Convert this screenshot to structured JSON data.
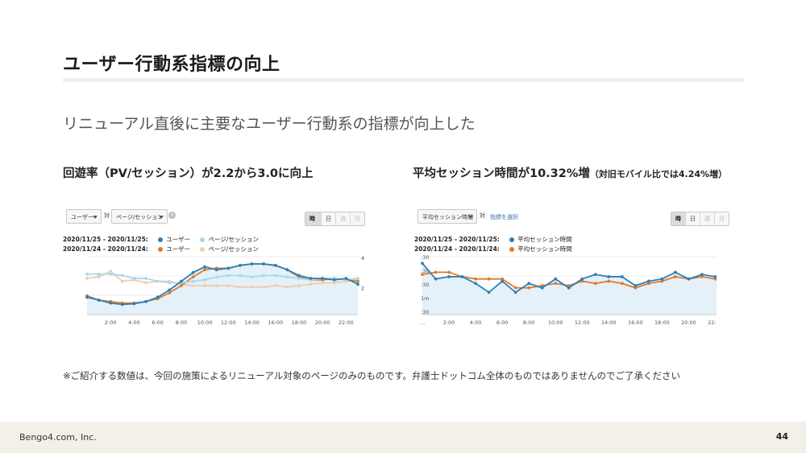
{
  "slide": {
    "title": "ユーザー行動系指標の向上",
    "subtitle": "リニューアル直後に主要なユーザー行動系の指標が向上した",
    "left_heading": "回遊率（PV/セッション）が2.2から3.0に向上",
    "right_heading_main": "平均セッション時間が10.32%増",
    "right_heading_note": "（対旧モバイル比では4.24%増）",
    "note": "※ご紹介する数値は、今回の施策によるリニューアル対象のページのみのものです。弁護士ドットコム全体のものではありませんのでご了承ください",
    "footer_company": "Bengo4.com, Inc.",
    "page_number": "44"
  },
  "colors": {
    "current_dark": "#2e7fb6",
    "current_light": "#a8d8ee",
    "previous_dark": "#e07b2a",
    "previous_light": "#f6cba8",
    "area_fill": "#e4f1f9"
  },
  "left_panel": {
    "dropdown1": "ユーザー",
    "vs": "対",
    "dropdown2": "ページ/セッション",
    "clear_icon": "close-icon",
    "seg_hourly": "時間別",
    "seg_day": "日",
    "seg_week": "週",
    "seg_month": "月",
    "range_current": "2020/11/25 - 2020/11/25:",
    "range_previous": "2020/11/24 - 2020/11/24:",
    "legend_user": "ユーザー",
    "legend_pps": "ページ/セッション"
  },
  "right_panel": {
    "dropdown1": "平均セッション時間",
    "vs": "対",
    "select_metric": "指標を選択",
    "seg_hourly": "時間別",
    "seg_day": "日",
    "seg_week": "週",
    "seg_month": "月",
    "range_current": "2020/11/25 - 2020/11/25:",
    "range_previous": "2020/11/24 - 2020/11/24:",
    "legend_avg": "平均セッション時間"
  },
  "chart_data": [
    {
      "type": "line",
      "x": [
        "0:00",
        "1:00",
        "2:00",
        "3:00",
        "4:00",
        "5:00",
        "6:00",
        "7:00",
        "8:00",
        "9:00",
        "10:00",
        "11:00",
        "12:00",
        "13:00",
        "14:00",
        "15:00",
        "16:00",
        "17:00",
        "18:00",
        "19:00",
        "20:00",
        "21:00",
        "22:00",
        "23:00"
      ],
      "x_tick_labels": [
        "2:00",
        "4:00",
        "6:00",
        "8:00",
        "10:00",
        "12:00",
        "14:00",
        "16:00",
        "18:00",
        "20:00",
        "22:00"
      ],
      "right_tick_labels": [
        "4",
        "2"
      ],
      "series": [
        {
          "name": "ユーザー",
          "period": "2020/11/25 - 2020/11/25",
          "values": [
            12,
            10,
            8,
            7,
            7.5,
            9,
            12,
            17,
            23,
            29,
            33,
            31,
            32,
            34,
            35,
            35,
            34,
            31,
            27,
            25,
            25,
            24,
            25,
            21
          ]
        },
        {
          "name": "ページ/セッション",
          "period": "2020/11/25 - 2020/11/25",
          "values": [
            28,
            28,
            28,
            27,
            25,
            25,
            23,
            22,
            22,
            23,
            24,
            26,
            27,
            27,
            26,
            27,
            27,
            26,
            25,
            24,
            25,
            25,
            24,
            25
          ]
        },
        {
          "name": "ユーザー",
          "period": "2020/11/24 - 2020/11/24",
          "values": [
            13,
            10,
            9,
            8,
            8,
            9,
            11,
            15,
            20,
            26,
            31,
            32,
            32,
            34,
            35,
            35,
            34,
            31,
            26,
            24,
            24,
            25,
            24,
            23
          ]
        },
        {
          "name": "ページ/セッション",
          "period": "2020/11/24 - 2020/11/24",
          "values": [
            25,
            26,
            30,
            23,
            24,
            22,
            23,
            23,
            21,
            20,
            20,
            20,
            20,
            19,
            19,
            19,
            20,
            19,
            20,
            21,
            22,
            22,
            23,
            24
          ]
        }
      ]
    },
    {
      "type": "line",
      "x": [
        "0:00",
        "1:00",
        "2:00",
        "3:00",
        "4:00",
        "5:00",
        "6:00",
        "7:00",
        "8:00",
        "9:00",
        "10:00",
        "11:00",
        "12:00",
        "13:00",
        "14:00",
        "15:00",
        "16:00",
        "17:00",
        "18:00",
        "19:00",
        "20:00",
        "21:00",
        "22:00",
        "23:00"
      ],
      "x_tick_labels": [
        "…",
        "2:00",
        "4:00",
        "6:00",
        "8:00",
        "10:00",
        "12:00",
        "14:00",
        "16:00",
        "18:00",
        "20:00",
        "22:00"
      ],
      "y_tick_labels": [
        ":30",
        ":30",
        ":30",
        "1m",
        ":30"
      ],
      "series": [
        {
          "name": "平均セッション時間",
          "period": "2020/11/25 - 2020/11/25",
          "values": [
            33,
            26,
            27,
            27,
            24,
            20,
            25,
            20,
            24,
            22,
            26,
            22,
            26,
            28,
            27,
            27,
            23,
            25,
            26,
            29,
            26,
            28,
            27,
            21
          ]
        },
        {
          "name": "平均セッション時間",
          "period": "2020/11/24 - 2020/11/24",
          "values": [
            28,
            29,
            29,
            27,
            26,
            26,
            26,
            22,
            22,
            23,
            24,
            23,
            25,
            24,
            25,
            24,
            22,
            24,
            25,
            27,
            26,
            27,
            26,
            22
          ]
        }
      ]
    }
  ]
}
